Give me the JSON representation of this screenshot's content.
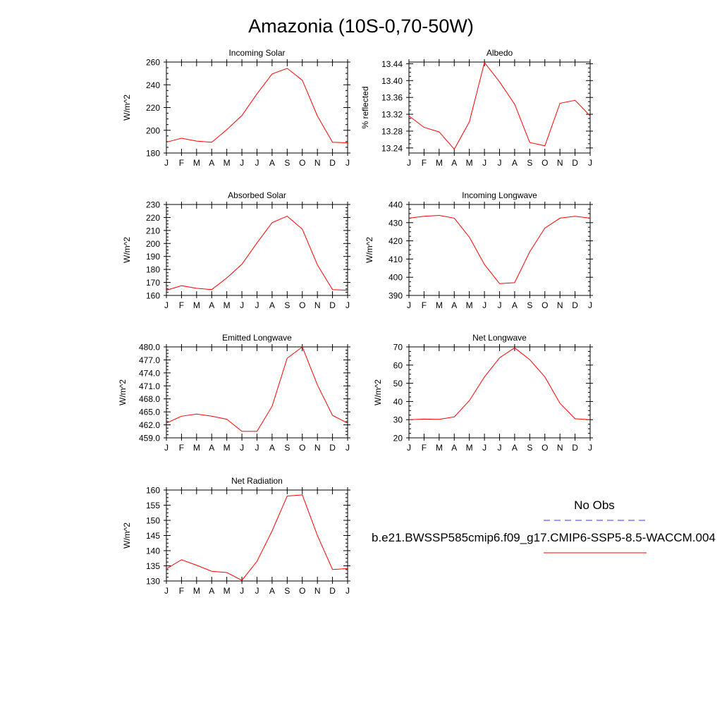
{
  "title": "Amazonia (10S-0,70-50W)",
  "legend": {
    "obs_label": "No Obs",
    "model_label": "b.e21.BWSSP585cmip6.f09_g17.CMIP6-SSP5-8.5-WACCM.004",
    "obs_color": "#3333ff",
    "model_color": "#ff0000"
  },
  "colors": {
    "line": "#ff0000",
    "axis": "#000000"
  },
  "chart_data": [
    {
      "type": "line",
      "title": "Incoming Solar",
      "ylabel": "W/m^2",
      "ylim": [
        180,
        260
      ],
      "yticks": [
        180,
        200,
        220,
        240,
        260
      ],
      "ytick_labels": [
        "180",
        "200",
        "220",
        "240",
        "260"
      ],
      "categories": [
        "J",
        "F",
        "M",
        "A",
        "M",
        "J",
        "J",
        "A",
        "S",
        "O",
        "N",
        "D",
        "J"
      ],
      "values": [
        189.5,
        193,
        190.5,
        189.5,
        200.5,
        213,
        232,
        249.5,
        254.5,
        244,
        212.5,
        189.5,
        189
      ]
    },
    {
      "type": "line",
      "title": "Albedo",
      "ylabel": "% reflected",
      "ylim": [
        13.228,
        13.444
      ],
      "yticks": [
        13.24,
        13.28,
        13.32,
        13.36,
        13.4,
        13.44
      ],
      "ytick_labels": [
        "13.24",
        "13.28",
        "13.32",
        "13.36",
        "13.40",
        "13.44"
      ],
      "categories": [
        "J",
        "F",
        "M",
        "A",
        "M",
        "J",
        "J",
        "A",
        "S",
        "O",
        "N",
        "D",
        "J"
      ],
      "values": [
        13.316,
        13.289,
        13.278,
        13.237,
        13.302,
        13.443,
        13.397,
        13.344,
        13.253,
        13.245,
        13.346,
        13.353,
        13.316
      ]
    },
    {
      "type": "line",
      "title": "Absorbed Solar",
      "ylabel": "W/m^2",
      "ylim": [
        160,
        230
      ],
      "yticks": [
        160,
        170,
        180,
        190,
        200,
        210,
        220,
        230
      ],
      "ytick_labels": [
        "160",
        "170",
        "180",
        "190",
        "200",
        "210",
        "220",
        "230"
      ],
      "categories": [
        "J",
        "F",
        "M",
        "A",
        "M",
        "J",
        "J",
        "A",
        "S",
        "O",
        "N",
        "D",
        "J"
      ],
      "values": [
        164,
        167.5,
        165.5,
        164.5,
        173.5,
        184,
        200.5,
        216,
        221,
        211,
        183.5,
        164.5,
        164
      ]
    },
    {
      "type": "line",
      "title": "Incoming Longwave",
      "ylabel": "W/m^2",
      "ylim": [
        390,
        440
      ],
      "yticks": [
        390,
        400,
        410,
        420,
        430,
        440
      ],
      "ytick_labels": [
        "390",
        "400",
        "410",
        "420",
        "430",
        "440"
      ],
      "categories": [
        "J",
        "F",
        "M",
        "A",
        "M",
        "J",
        "J",
        "A",
        "S",
        "O",
        "N",
        "D",
        "J"
      ],
      "values": [
        432.5,
        433.5,
        434,
        432.5,
        422,
        407,
        396.5,
        397,
        414,
        427,
        432.5,
        433.5,
        432.5
      ]
    },
    {
      "type": "line",
      "title": "Emitted Longwave",
      "ylabel": "W/m^2",
      "ylim": [
        459,
        480
      ],
      "yticks": [
        459,
        462,
        465,
        468,
        471,
        474,
        477,
        480
      ],
      "ytick_labels": [
        "459.0",
        "462.0",
        "465.0",
        "468.0",
        "471.0",
        "474.0",
        "477.0",
        "480.0"
      ],
      "categories": [
        "J",
        "F",
        "M",
        "A",
        "M",
        "J",
        "J",
        "A",
        "S",
        "O",
        "N",
        "D",
        "J"
      ],
      "values": [
        462.4,
        464.0,
        464.5,
        464.0,
        463.3,
        460.5,
        460.5,
        466.3,
        477.4,
        480.0,
        471.2,
        464.2,
        462.4
      ]
    },
    {
      "type": "line",
      "title": "Net Longwave",
      "ylabel": "W/m^2",
      "ylim": [
        20,
        70
      ],
      "yticks": [
        20,
        30,
        40,
        50,
        60,
        70
      ],
      "ytick_labels": [
        "20",
        "30",
        "40",
        "50",
        "60",
        "70"
      ],
      "categories": [
        "J",
        "F",
        "M",
        "A",
        "M",
        "J",
        "J",
        "A",
        "S",
        "O",
        "N",
        "D",
        "J"
      ],
      "values": [
        30,
        30.3,
        30.2,
        31.5,
        40.5,
        53.5,
        64,
        69.5,
        63,
        53.5,
        39,
        30.5,
        30
      ]
    },
    {
      "type": "line",
      "title": "Net Radiation",
      "ylabel": "W/m^2",
      "ylim": [
        130,
        160
      ],
      "yticks": [
        130,
        135,
        140,
        145,
        150,
        155,
        160
      ],
      "ytick_labels": [
        "130",
        "135",
        "140",
        "145",
        "150",
        "155",
        "160"
      ],
      "categories": [
        "J",
        "F",
        "M",
        "A",
        "M",
        "J",
        "J",
        "A",
        "S",
        "O",
        "N",
        "D",
        "J"
      ],
      "values": [
        134,
        137,
        135.2,
        133.2,
        132.8,
        130.2,
        136.5,
        146.5,
        158,
        158.4,
        145,
        133.8,
        134.1
      ]
    }
  ]
}
